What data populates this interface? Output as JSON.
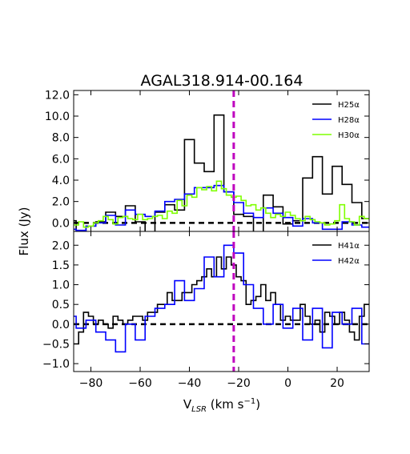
{
  "chart_data": {
    "type": "line",
    "title": "AGAL318.914-00.164",
    "xlabel": "V",
    "xlabel_sub": "LSR",
    "xlabel_units": " (km s",
    "xlabel_exp": "−1",
    "xlabel_close": ")",
    "ylabel": "Flux (Jy)",
    "xlim": [
      -87,
      33
    ],
    "xticks": [
      "−80",
      "−60",
      "−40",
      "−20",
      "0",
      "20"
    ],
    "xtick_values": [
      -80,
      -60,
      -40,
      -20,
      0,
      20
    ],
    "vline_x": -22,
    "vline_color": "#bf00bf",
    "panels": [
      {
        "ylim": [
          -0.8,
          12.4
        ],
        "yticks": [
          "12.0",
          "10.0",
          "8.0",
          "6.0",
          "4.0",
          "2.0",
          "0.0"
        ],
        "ytick_values": [
          12,
          10,
          8,
          6,
          4,
          2,
          0
        ],
        "zero_line": 0,
        "legend_position": "top-right",
        "series": [
          {
            "name": "H25α",
            "color": "#000000",
            "x": [
              -88,
              -84,
              -80,
              -76,
              -72,
              -68,
              -64,
              -60,
              -56,
              -52,
              -48,
              -44,
              -40,
              -36,
              -32,
              -28,
              -24,
              -20,
              -16,
              -12,
              -8,
              -4,
              0,
              4,
              8,
              12,
              16,
              20,
              24,
              28,
              32
            ],
            "y": [
              0.2,
              -0.8,
              -0.3,
              0.1,
              1.0,
              0.6,
              1.6,
              0.1,
              -0.9,
              1.0,
              1.7,
              1.2,
              7.8,
              5.6,
              4.8,
              10.1,
              2.9,
              0.8,
              0.6,
              -0.9,
              2.6,
              1.5,
              -0.1,
              0.2,
              4.2,
              6.2,
              2.7,
              5.3,
              3.6,
              1.9,
              0.4
            ]
          },
          {
            "name": "H28α",
            "color": "#0000ff",
            "x": [
              -88,
              -84,
              -80,
              -76,
              -72,
              -68,
              -64,
              -60,
              -56,
              -52,
              -48,
              -44,
              -40,
              -36,
              -32,
              -28,
              -24,
              -20,
              -16,
              -12,
              -8,
              -4,
              0,
              4,
              8,
              12,
              16,
              20,
              24,
              28,
              32
            ],
            "y": [
              -0.6,
              -0.7,
              -0.3,
              0.0,
              0.7,
              -0.2,
              1.2,
              0.8,
              0.6,
              1.1,
              2.0,
              2.2,
              2.7,
              3.3,
              3.3,
              3.5,
              2.9,
              1.9,
              0.9,
              0.5,
              1.4,
              0.9,
              0.5,
              -0.3,
              0.4,
              0.0,
              -0.6,
              -0.6,
              0.1,
              -0.2,
              -0.4
            ]
          },
          {
            "name": "H30α",
            "color": "#7fff00",
            "x": [
              -88,
              -86,
              -84,
              -82,
              -80,
              -78,
              -76,
              -74,
              -72,
              -70,
              -68,
              -66,
              -64,
              -62,
              -60,
              -58,
              -56,
              -54,
              -52,
              -50,
              -48,
              -46,
              -44,
              -42,
              -40,
              -38,
              -36,
              -34,
              -32,
              -30,
              -28,
              -26,
              -24,
              -22,
              -20,
              -18,
              -16,
              -14,
              -12,
              -10,
              -8,
              -6,
              -4,
              -2,
              0,
              2,
              4,
              6,
              8,
              10,
              12,
              14,
              16,
              18,
              20,
              22,
              24,
              26,
              28,
              30,
              32
            ],
            "y": [
              0.4,
              -0.2,
              0.1,
              -0.4,
              -0.3,
              0.0,
              0.2,
              0.6,
              0.3,
              -0.1,
              0.5,
              0.6,
              0.4,
              0.3,
              0.8,
              0.3,
              0.4,
              0.6,
              0.7,
              0.4,
              1.1,
              0.9,
              2.1,
              1.6,
              2.6,
              2.4,
              3.3,
              3.1,
              3.4,
              3.0,
              3.9,
              3.2,
              2.6,
              2.4,
              2.5,
              2.1,
              1.6,
              1.7,
              1.2,
              1.4,
              0.9,
              0.5,
              0.8,
              0.6,
              1.0,
              0.7,
              0.4,
              0.2,
              0.6,
              0.3,
              0.1,
              0.0,
              -0.2,
              -0.1,
              0.2,
              1.7,
              0.4,
              0.1,
              -0.2,
              0.6,
              0.4
            ]
          }
        ]
      },
      {
        "ylim": [
          -1.2,
          2.35
        ],
        "yticks": [
          "2.0",
          "1.5",
          "1.0",
          "0.5",
          "0.0",
          "−0.5",
          "−1.0"
        ],
        "ytick_values": [
          2.0,
          1.5,
          1.0,
          0.5,
          0.0,
          -0.5,
          -1.0
        ],
        "zero_line": 0,
        "legend_position": "top-right",
        "series": [
          {
            "name": "H41α",
            "color": "#000000",
            "x": [
              -88,
              -86,
              -84,
              -82,
              -80,
              -78,
              -76,
              -74,
              -72,
              -70,
              -68,
              -66,
              -64,
              -62,
              -60,
              -58,
              -56,
              -54,
              -52,
              -50,
              -48,
              -46,
              -44,
              -42,
              -40,
              -38,
              -36,
              -34,
              -32,
              -30,
              -28,
              -26,
              -24,
              -22,
              -20,
              -18,
              -16,
              -14,
              -12,
              -10,
              -8,
              -6,
              -4,
              -2,
              0,
              2,
              4,
              6,
              8,
              10,
              12,
              14,
              16,
              18,
              20,
              22,
              24,
              26,
              28,
              30,
              32
            ],
            "y": [
              -0.7,
              -0.5,
              -0.2,
              0.3,
              0.2,
              0.0,
              0.1,
              0.0,
              -0.1,
              0.2,
              0.1,
              0.0,
              0.1,
              0.2,
              0.2,
              0.1,
              0.3,
              0.3,
              0.5,
              0.5,
              0.8,
              0.6,
              0.6,
              0.8,
              0.8,
              1.0,
              1.1,
              1.2,
              1.4,
              1.2,
              1.7,
              1.4,
              1.7,
              1.5,
              1.2,
              1.1,
              0.5,
              0.6,
              0.7,
              1.0,
              0.6,
              0.8,
              0.5,
              0.1,
              0.2,
              0.1,
              0.1,
              0.5,
              0.2,
              0.0,
              0.1,
              -0.2,
              0.3,
              0.2,
              0.0,
              0.3,
              0.1,
              -0.2,
              -0.4,
              0.2,
              0.5
            ]
          },
          {
            "name": "H42α",
            "color": "#0000ff",
            "x": [
              -88,
              -84,
              -80,
              -76,
              -72,
              -68,
              -64,
              -60,
              -56,
              -52,
              -48,
              -44,
              -40,
              -36,
              -32,
              -28,
              -24,
              -20,
              -16,
              -12,
              -8,
              -4,
              0,
              4,
              8,
              12,
              16,
              20,
              24,
              28,
              32
            ],
            "y": [
              0.2,
              -0.1,
              0.1,
              -0.2,
              -0.4,
              -0.7,
              0.0,
              -0.4,
              0.2,
              0.4,
              0.5,
              1.1,
              0.6,
              0.9,
              1.7,
              1.2,
              2.0,
              1.8,
              1.0,
              0.4,
              0.0,
              0.5,
              -0.1,
              0.4,
              -0.4,
              0.4,
              -0.6,
              0.3,
              0.0,
              0.4,
              -0.5
            ]
          }
        ]
      }
    ]
  }
}
